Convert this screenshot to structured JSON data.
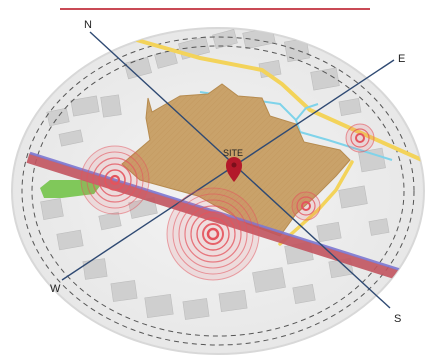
{
  "labels": {
    "site": "SITE",
    "north": "N",
    "east": "E",
    "south": "S",
    "west": "W"
  },
  "colors": {
    "site_fill": "#c9a26a",
    "site_stroke": "#b68b4f",
    "rail_red": "#c25560",
    "rail_blue": "#7d78d2",
    "road_yellow": "#f3d35a",
    "water_blue": "#7fd3ea",
    "park_green": "#74c44a",
    "pin_red": "#b3192a",
    "ring_red": "#e4545e",
    "axis_line": "#2f4a73",
    "top_band": "#c94a55"
  },
  "icons": {
    "site_marker": "map-pin-icon"
  }
}
